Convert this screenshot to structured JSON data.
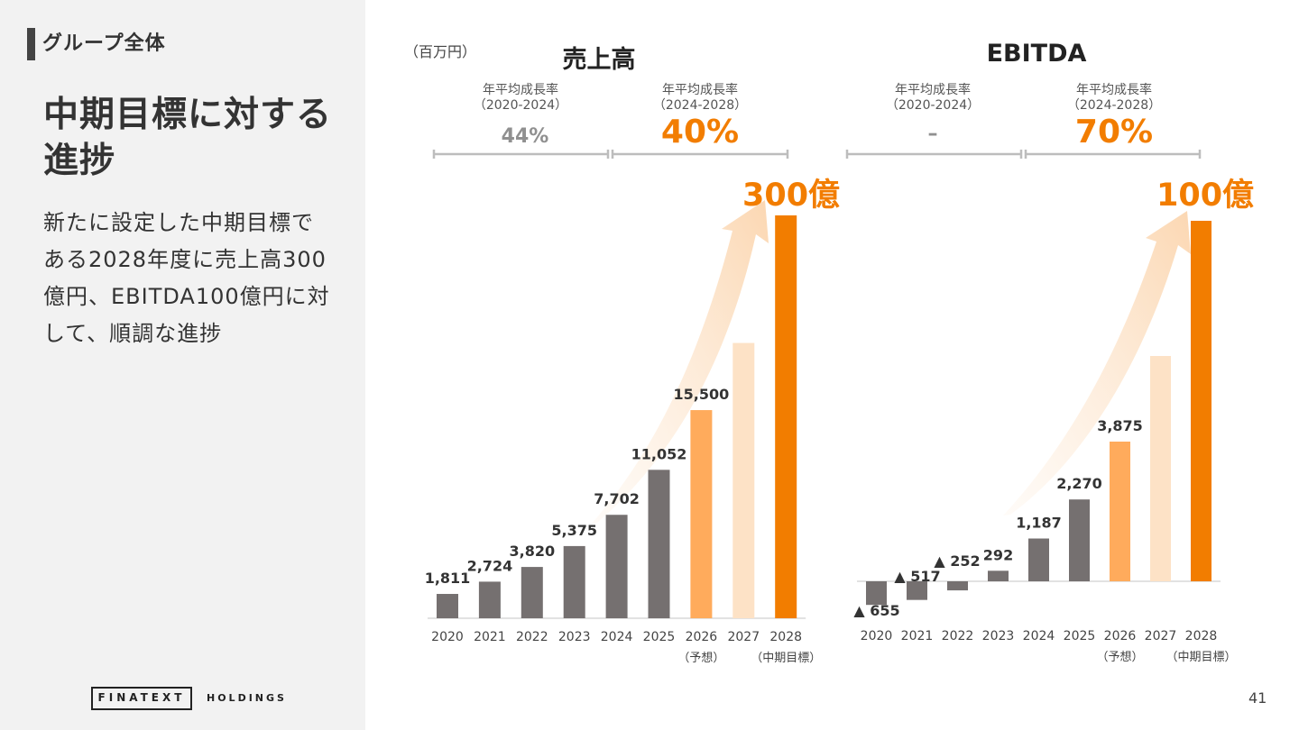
{
  "sidebar": {
    "section_label": "グループ全体",
    "headline": "中期目標に対する進捗",
    "body": "新たに設定した中期目標である2028年度に売上高300億円、EBITDA100億円に対して、順調な進捗"
  },
  "footer": {
    "logo": "FINATEXT",
    "logo_sub": "HOLDINGS",
    "page_number": "41"
  },
  "unit_note": "（百万円）",
  "colors": {
    "actual": "#757070",
    "forecast": "#ffab5c",
    "plan_2027": "#fde2c6",
    "target": "#f27d00",
    "accent": "#f27d00"
  },
  "chart_data": [
    {
      "type": "bar",
      "title": "売上高",
      "categories": [
        "2020",
        "2021",
        "2022",
        "2023",
        "2024",
        "2025",
        "2026",
        "2027",
        "2028"
      ],
      "category_notes": [
        "",
        "",
        "",
        "",
        "",
        "",
        "（予想）",
        "",
        "（中期目標）"
      ],
      "values": [
        1811,
        2724,
        3820,
        5375,
        7702,
        11052,
        15500,
        20500,
        30000
      ],
      "data_labels": [
        "1,811",
        "2,724",
        "3,820",
        "5,375",
        "7,702",
        "11,052",
        "15,500",
        "",
        ""
      ],
      "bar_kinds": [
        "actual",
        "actual",
        "actual",
        "actual",
        "actual",
        "actual",
        "forecast",
        "plan_2027",
        "target"
      ],
      "ylim": [
        0,
        30000
      ],
      "target_label": "300億",
      "cagr": [
        {
          "label": "年平均成長率",
          "period": "（2020-2024）",
          "value": "44%",
          "highlight": false
        },
        {
          "label": "年平均成長率",
          "period": "（2024-2028）",
          "value": "40%",
          "highlight": true
        }
      ]
    },
    {
      "type": "bar",
      "title": "EBITDA",
      "categories": [
        "2020",
        "2021",
        "2022",
        "2023",
        "2024",
        "2025",
        "2026",
        "2027",
        "2028"
      ],
      "category_notes": [
        "",
        "",
        "",
        "",
        "",
        "",
        "（予想）",
        "",
        "（中期目標）"
      ],
      "values": [
        -655,
        -517,
        -252,
        292,
        1187,
        2270,
        3875,
        6250,
        10000
      ],
      "data_labels": [
        "▲ 655",
        "▲ 517",
        "▲ 252",
        "292",
        "1,187",
        "2,270",
        "3,875",
        "",
        ""
      ],
      "bar_kinds": [
        "actual",
        "actual",
        "actual",
        "actual",
        "actual",
        "actual",
        "forecast",
        "plan_2027",
        "target"
      ],
      "ylim": [
        -655,
        10000
      ],
      "target_label": "100億",
      "cagr": [
        {
          "label": "年平均成長率",
          "period": "（2020-2024）",
          "value": "–",
          "highlight": false
        },
        {
          "label": "年平均成長率",
          "period": "（2024-2028）",
          "value": "70%",
          "highlight": true
        }
      ]
    }
  ]
}
